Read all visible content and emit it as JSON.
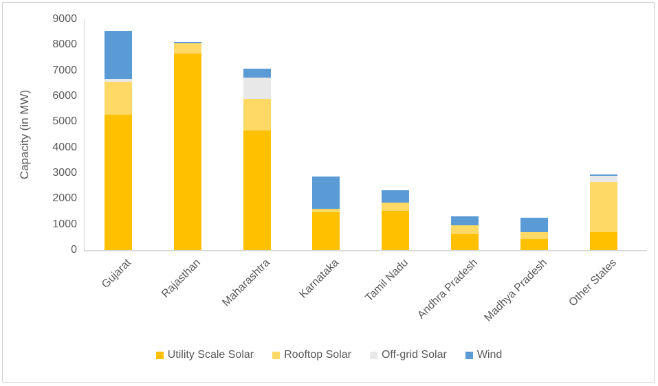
{
  "chart_data": {
    "type": "bar",
    "stacked": true,
    "title": "",
    "xlabel": "",
    "ylabel": "Capacity (in MW)",
    "ylim": [
      0,
      9000
    ],
    "yticks": [
      0,
      1000,
      2000,
      3000,
      4000,
      5000,
      6000,
      7000,
      8000,
      9000
    ],
    "grid": false,
    "legend_position": "bottom",
    "categories": [
      "Gujarat",
      "Rajasthan",
      "Maharashtra",
      "Karnataka",
      "Tamil Nadu",
      "Andhra Pradesh",
      "Madhya Pradesh",
      "Other States"
    ],
    "series": [
      {
        "name": "Utility Scale Solar",
        "color": "#FFC000",
        "values": [
          5290,
          7660,
          4660,
          1475,
          1520,
          625,
          440,
          690
        ]
      },
      {
        "name": "Rooftop Solar",
        "color": "#FFD966",
        "values": [
          1270,
          400,
          1225,
          135,
          330,
          340,
          250,
          1965
        ]
      },
      {
        "name": "Off-grid Solar",
        "color": "#E9E8E8",
        "values": [
          100,
          0,
          830,
          0,
          0,
          0,
          0,
          240
        ]
      },
      {
        "name": "Wind",
        "color": "#5B9BD5",
        "values": [
          1890,
          55,
          350,
          1265,
          475,
          355,
          580,
          55
        ]
      }
    ],
    "totals": [
      8550,
      8115,
      7065,
      2875,
      2325,
      1320,
      1270,
      2950
    ]
  },
  "colors": {
    "text": "#595959",
    "axis_line": "#D9D9D9",
    "frame_border": "#D2D2D2",
    "background": "#FFFFFF"
  }
}
